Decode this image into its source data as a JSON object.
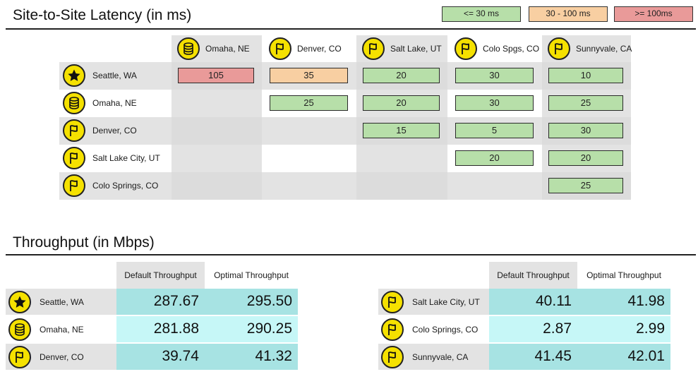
{
  "latency": {
    "title": "Site-to-Site Latency (in ms)",
    "legend": [
      {
        "label": "<= 30 ms",
        "color": "#b7dfa9"
      },
      {
        "label": "30 - 100 ms",
        "color": "#f8cfa2"
      },
      {
        "label": ">= 100ms",
        "color": "#e99a99"
      }
    ],
    "columns": [
      {
        "label": "Omaha, NE",
        "icon": "database-icon"
      },
      {
        "label": "Denver, CO",
        "icon": "flag-icon"
      },
      {
        "label": "Salt Lake, UT",
        "icon": "flag-icon"
      },
      {
        "label": "Colo Spgs, CO",
        "icon": "flag-icon"
      },
      {
        "label": "Sunnyvale, CA",
        "icon": "flag-icon"
      }
    ],
    "rows": [
      {
        "label": "Seattle, WA",
        "icon": "star-icon",
        "values": [
          "105",
          "35",
          "20",
          "30",
          "10"
        ]
      },
      {
        "label": "Omaha, NE",
        "icon": "database-icon",
        "values": [
          "",
          "25",
          "20",
          "30",
          "25"
        ]
      },
      {
        "label": "Denver, CO",
        "icon": "flag-icon",
        "values": [
          "",
          "",
          "15",
          "5",
          "30"
        ]
      },
      {
        "label": "Salt Lake City, UT",
        "icon": "flag-icon",
        "values": [
          "",
          "",
          "",
          "20",
          "20"
        ]
      },
      {
        "label": "Colo Springs, CO",
        "icon": "flag-icon",
        "values": [
          "",
          "",
          "",
          "",
          "25"
        ]
      }
    ]
  },
  "throughput": {
    "title": "Throughput (in Mbps)",
    "col_default": "Default Throughput",
    "col_optimal": "Optimal Throughput",
    "left": [
      {
        "label": "Seattle, WA",
        "icon": "star-icon",
        "default": "287.67",
        "optimal": "295.50"
      },
      {
        "label": "Omaha, NE",
        "icon": "database-icon",
        "default": "281.88",
        "optimal": "290.25"
      },
      {
        "label": "Denver, CO",
        "icon": "flag-icon",
        "default": "39.74",
        "optimal": "41.32"
      }
    ],
    "right": [
      {
        "label": "Salt Lake City, UT",
        "icon": "flag-icon",
        "default": "40.11",
        "optimal": "41.98"
      },
      {
        "label": "Colo Springs, CO",
        "icon": "flag-icon",
        "default": "2.87",
        "optimal": "2.99"
      },
      {
        "label": "Sunnyvale, CA",
        "icon": "flag-icon",
        "default": "41.45",
        "optimal": "42.01"
      }
    ]
  }
}
